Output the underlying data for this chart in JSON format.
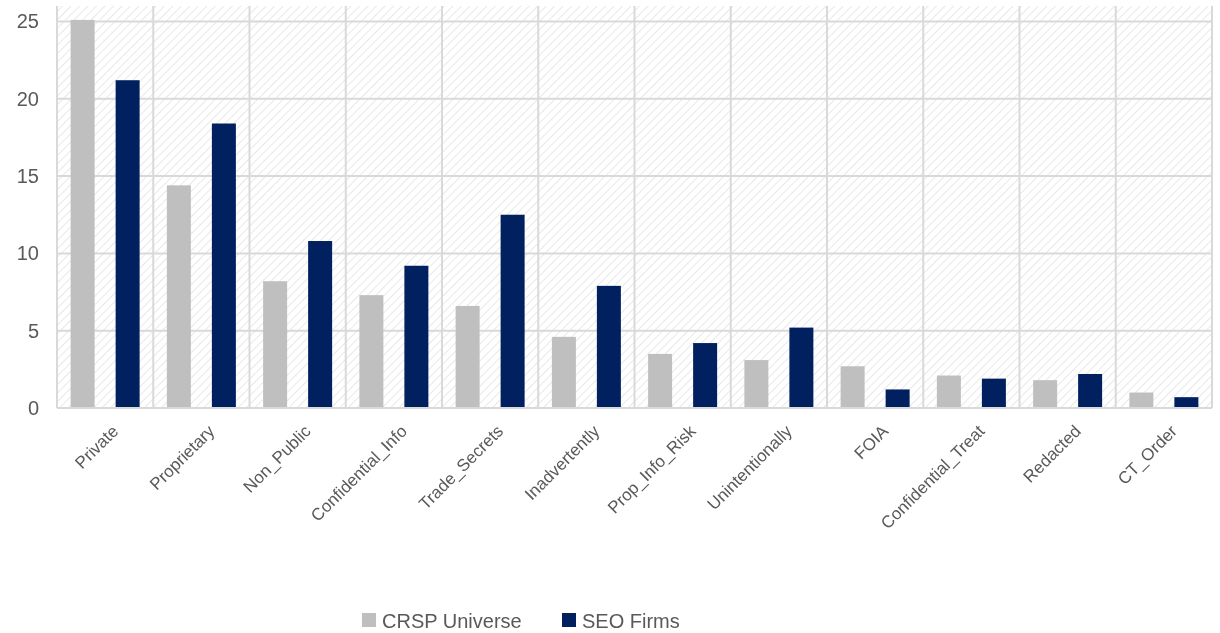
{
  "chart_data": {
    "type": "bar",
    "categories": [
      "Private",
      "Proprietary",
      "Non_Public",
      "Confidential_Info",
      "Trade_Secrets",
      "Inadvertently",
      "Prop_Info_Risk",
      "Unintentionally",
      "FOIA",
      "Confidential_Treat",
      "Redacted",
      "CT_Order"
    ],
    "series": [
      {
        "name": "CRSP Universe",
        "color": "#bfbfbf",
        "values": [
          25.1,
          14.4,
          8.2,
          7.3,
          6.6,
          4.6,
          3.5,
          3.1,
          2.7,
          2.1,
          1.8,
          1.0
        ]
      },
      {
        "name": "SEO Firms",
        "color": "#002060",
        "values": [
          21.2,
          18.4,
          10.8,
          9.2,
          12.5,
          7.9,
          4.2,
          5.2,
          1.2,
          1.9,
          2.2,
          0.7
        ]
      }
    ],
    "ylim": [
      0,
      26
    ],
    "yticks": [
      0,
      5,
      10,
      15,
      20,
      25
    ],
    "grid": true,
    "legend": "bottom"
  }
}
